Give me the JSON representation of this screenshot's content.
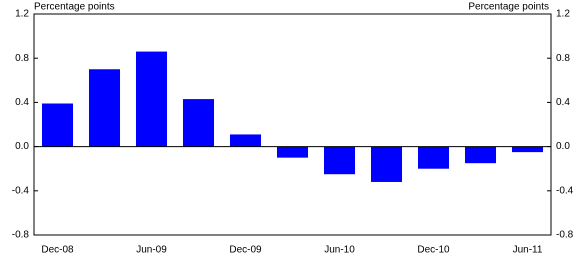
{
  "chart_data": {
    "type": "bar",
    "y_label": "Percentage points",
    "y2_label": "Percentage points",
    "categories": [
      "Dec-08",
      null,
      "Jun-09",
      null,
      "Dec-09",
      null,
      "Jun-10",
      null,
      "Dec-10",
      null,
      "Jun-11"
    ],
    "values": [
      0.39,
      0.7,
      0.86,
      0.43,
      0.11,
      -0.1,
      -0.25,
      -0.32,
      -0.2,
      -0.15,
      -0.05
    ],
    "color": "#0000ff",
    "ylim": [
      -0.8,
      1.2
    ],
    "yticks": [
      1.2,
      0.8,
      0.4,
      {
        "value": 0,
        "label": "0.0"
      },
      -0.4,
      -0.8
    ],
    "y2lim": [
      -0.8,
      1.2
    ],
    "y2ticks": [
      1.2,
      0.8,
      0.4,
      {
        "value": 0,
        "label": "0.0"
      },
      -0.4,
      -0.8
    ],
    "grid": false
  }
}
